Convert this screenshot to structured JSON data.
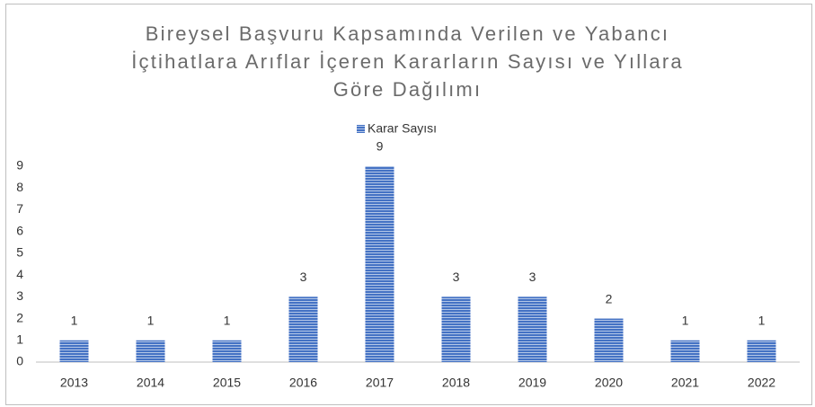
{
  "chart_data": {
    "type": "bar",
    "title": "Bireysel Başvuru Kapsamında Verilen ve Yabancı İçtihatlara Arıflar İçeren Kararların Sayısı ve Yıllara Göre Dağılımı",
    "categories": [
      "2013",
      "2014",
      "2015",
      "2016",
      "2017",
      "2018",
      "2019",
      "2020",
      "2021",
      "2022"
    ],
    "series": [
      {
        "name": "Karar Sayısı",
        "color": "#4472c4",
        "values": [
          1,
          1,
          1,
          3,
          9,
          3,
          3,
          2,
          1,
          1
        ]
      }
    ],
    "ylim": [
      0,
      9
    ],
    "yticks": [
      0,
      1,
      2,
      3,
      4,
      5,
      6,
      7,
      8,
      9
    ],
    "grid": false,
    "legend": "top"
  }
}
